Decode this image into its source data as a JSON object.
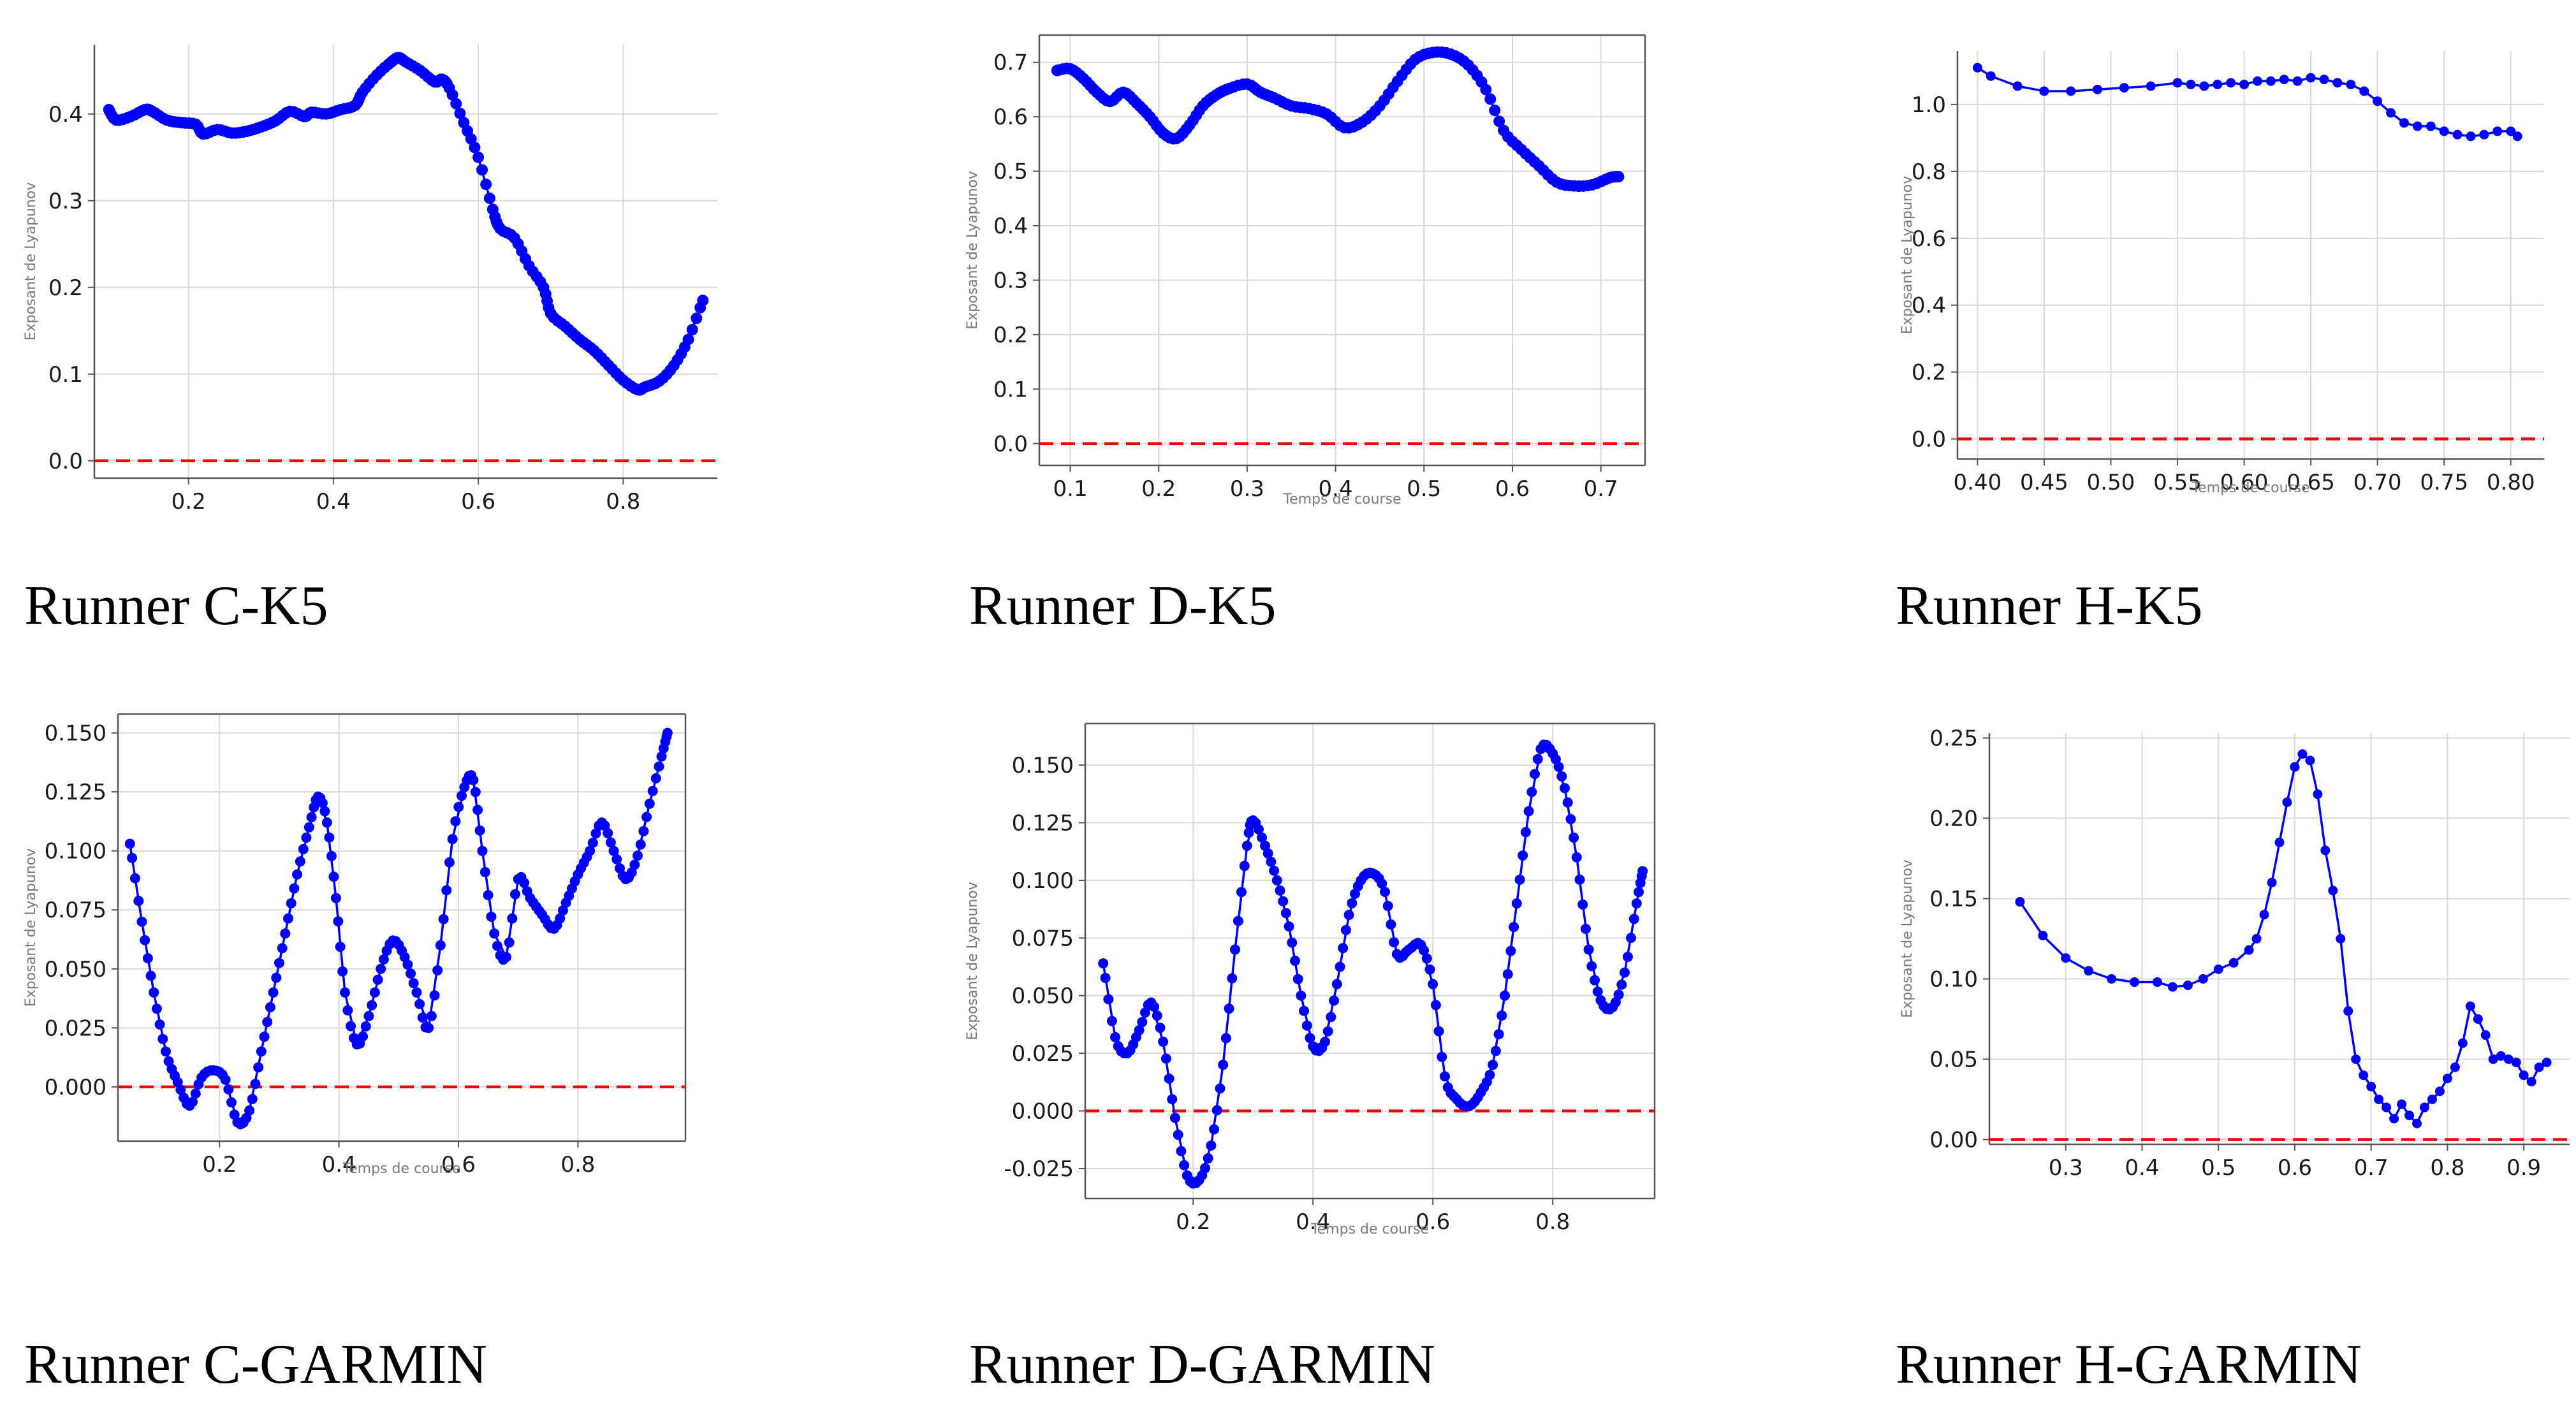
{
  "colors": {
    "series": "#0000ff",
    "reference": "#ff0000",
    "grid": "#d9d9d9",
    "axis": "#555555"
  },
  "chart_data": [
    {
      "id": "c-k5",
      "caption": "Runner C-K5",
      "type": "line",
      "xlabel": "",
      "ylabel": "Exposant de Lyapunov",
      "xlim": [
        0.07,
        0.93
      ],
      "ylim": [
        -0.02,
        0.48
      ],
      "xticks": [
        0.2,
        0.4,
        0.6,
        0.8
      ],
      "yticks": [
        0.0,
        0.1,
        0.2,
        0.3,
        0.4
      ],
      "decimals": 1,
      "reference_line": 0.0,
      "grid": true,
      "markers": "large",
      "smooth": true,
      "series": [
        {
          "x": [
            0.09,
            0.1,
            0.12,
            0.14,
            0.15,
            0.17,
            0.19,
            0.21,
            0.22,
            0.24,
            0.26,
            0.28,
            0.3,
            0.32,
            0.34,
            0.36,
            0.37,
            0.39,
            0.41,
            0.43,
            0.44,
            0.46,
            0.48,
            0.49,
            0.5,
            0.52,
            0.54,
            0.55,
            0.56,
            0.58,
            0.6,
            0.62,
            0.63,
            0.65,
            0.67,
            0.69,
            0.7,
            0.72,
            0.74,
            0.76,
            0.78,
            0.8,
            0.82,
            0.83,
            0.85,
            0.87,
            0.89,
            0.91
          ],
          "y": [
            0.405,
            0.393,
            0.397,
            0.405,
            0.403,
            0.393,
            0.39,
            0.388,
            0.377,
            0.382,
            0.378,
            0.38,
            0.385,
            0.392,
            0.403,
            0.397,
            0.402,
            0.4,
            0.405,
            0.41,
            0.425,
            0.445,
            0.46,
            0.465,
            0.46,
            0.45,
            0.437,
            0.44,
            0.43,
            0.39,
            0.35,
            0.29,
            0.268,
            0.257,
            0.225,
            0.2,
            0.17,
            0.155,
            0.14,
            0.127,
            0.11,
            0.093,
            0.082,
            0.085,
            0.092,
            0.11,
            0.14,
            0.185
          ]
        }
      ]
    },
    {
      "id": "d-k5",
      "caption": "Runner D-K5",
      "type": "line",
      "xlabel": "Temps de course",
      "ylabel": "Exposant de Lyapunov",
      "xlim": [
        0.065,
        0.75
      ],
      "ylim": [
        -0.04,
        0.75
      ],
      "xticks": [
        0.1,
        0.2,
        0.3,
        0.4,
        0.5,
        0.6,
        0.7
      ],
      "yticks": [
        0.0,
        0.1,
        0.2,
        0.3,
        0.4,
        0.5,
        0.6,
        0.7
      ],
      "decimals": 1,
      "reference_line": 0.0,
      "grid": true,
      "markers": "large",
      "smooth": true,
      "series": [
        {
          "x": [
            0.085,
            0.1,
            0.115,
            0.13,
            0.145,
            0.16,
            0.175,
            0.19,
            0.205,
            0.22,
            0.235,
            0.25,
            0.265,
            0.28,
            0.3,
            0.315,
            0.33,
            0.35,
            0.37,
            0.39,
            0.41,
            0.43,
            0.45,
            0.47,
            0.49,
            0.51,
            0.53,
            0.55,
            0.57,
            0.59,
            0.61,
            0.63,
            0.65,
            0.67,
            0.69,
            0.71,
            0.72
          ],
          "y": [
            0.685,
            0.688,
            0.67,
            0.645,
            0.628,
            0.645,
            0.625,
            0.6,
            0.57,
            0.56,
            0.585,
            0.62,
            0.64,
            0.652,
            0.66,
            0.645,
            0.635,
            0.62,
            0.615,
            0.605,
            0.58,
            0.59,
            0.62,
            0.665,
            0.705,
            0.718,
            0.715,
            0.695,
            0.65,
            0.575,
            0.54,
            0.51,
            0.48,
            0.473,
            0.475,
            0.488,
            0.49
          ]
        }
      ]
    },
    {
      "id": "h-k5",
      "caption": "Runner H-K5",
      "type": "line",
      "xlabel": "Temps de course",
      "ylabel": "Exposant de Lyapunov",
      "xlim": [
        0.385,
        0.825
      ],
      "ylim": [
        -0.06,
        1.16
      ],
      "xticks": [
        0.4,
        0.45,
        0.5,
        0.55,
        0.6,
        0.65,
        0.7,
        0.75,
        0.8
      ],
      "yticks": [
        0.0,
        0.2,
        0.4,
        0.6,
        0.8,
        1.0
      ],
      "decimals": 1,
      "xdecimals": 2,
      "reference_line": 0.0,
      "grid": true,
      "markers": "small",
      "smooth": false,
      "series": [
        {
          "x": [
            0.4,
            0.41,
            0.43,
            0.45,
            0.47,
            0.49,
            0.51,
            0.53,
            0.55,
            0.56,
            0.57,
            0.58,
            0.59,
            0.6,
            0.61,
            0.62,
            0.63,
            0.64,
            0.65,
            0.66,
            0.67,
            0.68,
            0.69,
            0.7,
            0.71,
            0.72,
            0.73,
            0.74,
            0.75,
            0.76,
            0.77,
            0.78,
            0.79,
            0.8,
            0.805
          ],
          "y": [
            1.11,
            1.085,
            1.055,
            1.04,
            1.04,
            1.045,
            1.05,
            1.055,
            1.065,
            1.06,
            1.055,
            1.06,
            1.065,
            1.06,
            1.07,
            1.07,
            1.075,
            1.07,
            1.08,
            1.075,
            1.065,
            1.06,
            1.04,
            1.01,
            0.975,
            0.945,
            0.935,
            0.935,
            0.92,
            0.91,
            0.905,
            0.91,
            0.92,
            0.92,
            0.905
          ]
        }
      ]
    },
    {
      "id": "c-garmin",
      "caption": "Runner C-GARMIN",
      "type": "line",
      "xlabel": "Temps de course",
      "ylabel": "Exposant de Lyapunov",
      "xlim": [
        0.03,
        0.98
      ],
      "ylim": [
        -0.023,
        0.158
      ],
      "xticks": [
        0.2,
        0.4,
        0.6,
        0.8
      ],
      "yticks": [
        0.0,
        0.025,
        0.05,
        0.075,
        0.1,
        0.125,
        0.15
      ],
      "decimals": 3,
      "reference_line": 0.0,
      "grid": true,
      "markers": "medium",
      "smooth": true,
      "series": [
        {
          "x": [
            0.05,
            0.07,
            0.09,
            0.11,
            0.13,
            0.15,
            0.17,
            0.19,
            0.21,
            0.23,
            0.25,
            0.27,
            0.29,
            0.31,
            0.33,
            0.35,
            0.365,
            0.38,
            0.395,
            0.41,
            0.43,
            0.45,
            0.47,
            0.49,
            0.51,
            0.53,
            0.55,
            0.57,
            0.59,
            0.61,
            0.625,
            0.64,
            0.66,
            0.68,
            0.7,
            0.72,
            0.74,
            0.76,
            0.78,
            0.8,
            0.82,
            0.84,
            0.86,
            0.88,
            0.9,
            0.92,
            0.94,
            0.95
          ],
          "y": [
            0.103,
            0.07,
            0.04,
            0.015,
            0.002,
            -0.008,
            0.004,
            0.007,
            0.003,
            -0.015,
            -0.01,
            0.015,
            0.04,
            0.065,
            0.09,
            0.11,
            0.123,
            0.112,
            0.08,
            0.04,
            0.018,
            0.03,
            0.05,
            0.062,
            0.055,
            0.04,
            0.025,
            0.06,
            0.105,
            0.127,
            0.13,
            0.1,
            0.065,
            0.055,
            0.088,
            0.08,
            0.073,
            0.067,
            0.078,
            0.09,
            0.1,
            0.112,
            0.1,
            0.088,
            0.098,
            0.12,
            0.14,
            0.15
          ]
        }
      ]
    },
    {
      "id": "d-garmin",
      "caption": "Runner D-GARMIN",
      "type": "line",
      "xlabel": "Temps de course",
      "ylabel": "Exposant de Lyapunov",
      "xlim": [
        0.02,
        0.97
      ],
      "ylim": [
        -0.038,
        0.168
      ],
      "xticks": [
        0.2,
        0.4,
        0.6,
        0.8
      ],
      "yticks": [
        -0.025,
        0.0,
        0.025,
        0.05,
        0.075,
        0.1,
        0.125,
        0.15
      ],
      "decimals": 3,
      "reference_line": 0.0,
      "grid": true,
      "markers": "medium",
      "smooth": true,
      "series": [
        {
          "x": [
            0.05,
            0.07,
            0.09,
            0.11,
            0.13,
            0.15,
            0.17,
            0.19,
            0.21,
            0.23,
            0.25,
            0.27,
            0.29,
            0.3,
            0.32,
            0.34,
            0.36,
            0.38,
            0.4,
            0.42,
            0.44,
            0.46,
            0.48,
            0.5,
            0.52,
            0.54,
            0.56,
            0.58,
            0.6,
            0.62,
            0.64,
            0.66,
            0.68,
            0.7,
            0.72,
            0.74,
            0.76,
            0.78,
            0.8,
            0.82,
            0.84,
            0.86,
            0.88,
            0.9,
            0.92,
            0.94,
            0.95
          ],
          "y": [
            0.064,
            0.032,
            0.025,
            0.035,
            0.047,
            0.03,
            -0.003,
            -0.028,
            -0.03,
            -0.015,
            0.02,
            0.07,
            0.115,
            0.126,
            0.115,
            0.1,
            0.08,
            0.05,
            0.028,
            0.03,
            0.055,
            0.085,
            0.1,
            0.103,
            0.095,
            0.068,
            0.07,
            0.072,
            0.055,
            0.015,
            0.005,
            0.002,
            0.008,
            0.02,
            0.05,
            0.09,
            0.13,
            0.157,
            0.155,
            0.14,
            0.11,
            0.07,
            0.048,
            0.045,
            0.06,
            0.09,
            0.104
          ]
        }
      ]
    },
    {
      "id": "h-garmin",
      "caption": "Runner H-GARMIN",
      "type": "line",
      "xlabel": "",
      "ylabel": "Exposant de Lyapunov",
      "xlim": [
        0.2,
        0.96
      ],
      "ylim": [
        -0.003,
        0.253
      ],
      "xticks": [
        0.3,
        0.4,
        0.5,
        0.6,
        0.7,
        0.8,
        0.9
      ],
      "yticks": [
        0.0,
        0.05,
        0.1,
        0.15,
        0.2,
        0.25
      ],
      "decimals": 2,
      "reference_line": 0.0,
      "grid": true,
      "markers": "small",
      "smooth": false,
      "series": [
        {
          "x": [
            0.24,
            0.27,
            0.3,
            0.33,
            0.36,
            0.39,
            0.42,
            0.44,
            0.46,
            0.48,
            0.5,
            0.52,
            0.54,
            0.55,
            0.56,
            0.57,
            0.58,
            0.59,
            0.6,
            0.61,
            0.62,
            0.63,
            0.64,
            0.65,
            0.66,
            0.67,
            0.68,
            0.69,
            0.7,
            0.71,
            0.72,
            0.73,
            0.74,
            0.75,
            0.76,
            0.77,
            0.78,
            0.79,
            0.8,
            0.81,
            0.82,
            0.83,
            0.84,
            0.85,
            0.86,
            0.87,
            0.88,
            0.89,
            0.9,
            0.91,
            0.92,
            0.93
          ],
          "y": [
            0.148,
            0.127,
            0.113,
            0.105,
            0.1,
            0.098,
            0.098,
            0.095,
            0.096,
            0.1,
            0.106,
            0.11,
            0.118,
            0.125,
            0.14,
            0.16,
            0.185,
            0.21,
            0.232,
            0.24,
            0.236,
            0.215,
            0.18,
            0.155,
            0.125,
            0.08,
            0.05,
            0.04,
            0.033,
            0.025,
            0.02,
            0.013,
            0.022,
            0.015,
            0.01,
            0.02,
            0.025,
            0.03,
            0.038,
            0.045,
            0.06,
            0.083,
            0.075,
            0.065,
            0.05,
            0.052,
            0.05,
            0.048,
            0.04,
            0.036,
            0.045,
            0.048
          ]
        }
      ]
    }
  ]
}
